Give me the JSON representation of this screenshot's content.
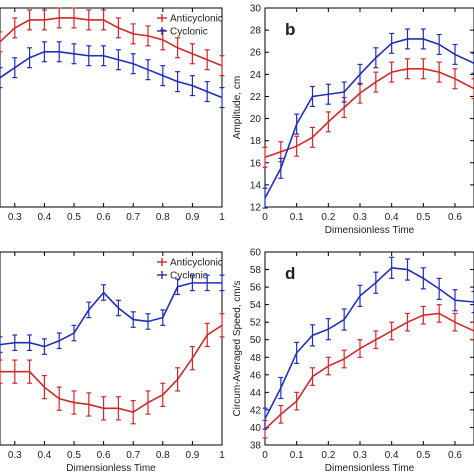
{
  "colors": {
    "anticyclonic": "#d62728",
    "cyclonic": "#1f2fbf",
    "axis": "#000000"
  },
  "chart_data": [
    {
      "type": "line",
      "panel": "top-left",
      "panel_letter": "",
      "xlabel": "",
      "ylabel": "",
      "xlim": [
        0.25,
        1.0
      ],
      "ylim": [
        0,
        100
      ],
      "xticks": [
        "0.3",
        "0.4",
        "0.5",
        "0.6",
        "0.7",
        "0.8",
        "0.9",
        "1"
      ],
      "yticks": [],
      "legend": {
        "position": "top-right",
        "entries": [
          "Anticyclonic",
          "Cyclonic"
        ]
      },
      "x": [
        0.25,
        0.3,
        0.35,
        0.4,
        0.45,
        0.5,
        0.55,
        0.6,
        0.65,
        0.7,
        0.75,
        0.8,
        0.85,
        0.9,
        0.95,
        1.0
      ],
      "series": [
        {
          "name": "Anticyclonic",
          "color": "anticyclonic",
          "values": [
            83,
            90,
            94,
            94,
            95,
            95,
            94,
            94,
            90,
            87,
            86,
            84,
            80,
            77,
            74,
            71
          ],
          "err": 5
        },
        {
          "name": "Cyclonic",
          "color": "cyclonic",
          "values": [
            65,
            70,
            75,
            78,
            78,
            77,
            76,
            76,
            74,
            72,
            69,
            66,
            63,
            61,
            58,
            55
          ],
          "err": 5
        }
      ]
    },
    {
      "type": "line",
      "panel": "top-right",
      "panel_letter": "b",
      "xlabel": "Dimensionless Time",
      "ylabel": "Amplitude, cm",
      "xlim": [
        0,
        0.66
      ],
      "ylim": [
        12,
        30
      ],
      "xticks": [
        "0",
        "0.1",
        "0.2",
        "0.3",
        "0.4",
        "0.5",
        "0.6"
      ],
      "yticks": [
        "12",
        "14",
        "16",
        "18",
        "20",
        "22",
        "24",
        "26",
        "28",
        "30"
      ],
      "legend": null,
      "x": [
        0,
        0.05,
        0.1,
        0.15,
        0.2,
        0.25,
        0.3,
        0.35,
        0.4,
        0.45,
        0.5,
        0.55,
        0.6,
        0.66
      ],
      "series": [
        {
          "name": "Anticyclonic",
          "color": "anticyclonic",
          "values": [
            16.5,
            17.0,
            17.5,
            18.3,
            19.7,
            21.0,
            22.3,
            23.3,
            24.2,
            24.5,
            24.5,
            24.2,
            23.6,
            22.7
          ],
          "err": 0.9
        },
        {
          "name": "Cyclonic",
          "color": "cyclonic",
          "values": [
            12.8,
            15.5,
            19.5,
            22.0,
            22.2,
            22.4,
            24.0,
            25.5,
            26.8,
            27.2,
            27.2,
            26.7,
            25.8,
            25.0
          ],
          "err": 0.9
        }
      ]
    },
    {
      "type": "line",
      "panel": "bottom-left",
      "panel_letter": "",
      "xlabel": "Dimensionless Time",
      "ylabel": "",
      "xlim": [
        0.25,
        1.0
      ],
      "ylim": [
        0,
        100
      ],
      "xticks": [
        "0.3",
        "0.4",
        "0.5",
        "0.6",
        "0.7",
        "0.8",
        "0.9",
        "1"
      ],
      "yticks": [],
      "legend": {
        "position": "top-right",
        "entries": [
          "Anticyclonic",
          "Cyclonic"
        ]
      },
      "x": [
        0.25,
        0.3,
        0.35,
        0.4,
        0.45,
        0.5,
        0.55,
        0.6,
        0.65,
        0.7,
        0.75,
        0.8,
        0.85,
        0.9,
        0.95,
        1.0
      ],
      "series": [
        {
          "name": "Anticyclonic",
          "color": "anticyclonic",
          "values": [
            38,
            38,
            38,
            30,
            24,
            22,
            21,
            19,
            19,
            17,
            22,
            26,
            34,
            45,
            57,
            62
          ],
          "err": 6
        },
        {
          "name": "Cyclonic",
          "color": "cyclonic",
          "values": [
            52,
            53,
            53,
            51,
            54,
            58,
            70,
            79,
            71,
            65,
            64,
            66,
            82,
            84,
            84,
            84
          ],
          "err": 4
        }
      ]
    },
    {
      "type": "line",
      "panel": "bottom-right",
      "panel_letter": "d",
      "xlabel": "Dimensionless Time",
      "ylabel": "Circum-Averaged Speed, cm/s",
      "xlim": [
        0,
        0.66
      ],
      "ylim": [
        38,
        60
      ],
      "xticks": [
        "0",
        "0.1",
        "0.2",
        "0.3",
        "0.4",
        "0.5",
        "0.6"
      ],
      "yticks": [
        "38",
        "40",
        "42",
        "44",
        "46",
        "48",
        "50",
        "52",
        "54",
        "56",
        "58",
        "60"
      ],
      "legend": null,
      "x": [
        0,
        0.05,
        0.1,
        0.15,
        0.2,
        0.25,
        0.3,
        0.35,
        0.4,
        0.45,
        0.5,
        0.55,
        0.6,
        0.66
      ],
      "series": [
        {
          "name": "Anticyclonic",
          "color": "anticyclonic",
          "values": [
            39.8,
            41.5,
            43.0,
            45.8,
            47.0,
            47.8,
            49.0,
            50.0,
            51.0,
            52.0,
            52.8,
            53.0,
            52.0,
            51.0
          ],
          "err": 1.0
        },
        {
          "name": "Cyclonic",
          "color": "cyclonic",
          "values": [
            41.0,
            44.5,
            48.5,
            50.5,
            51.2,
            52.3,
            55.0,
            56.5,
            58.2,
            58.0,
            57.0,
            55.8,
            54.5,
            54.3
          ],
          "err": 1.2
        }
      ]
    }
  ]
}
